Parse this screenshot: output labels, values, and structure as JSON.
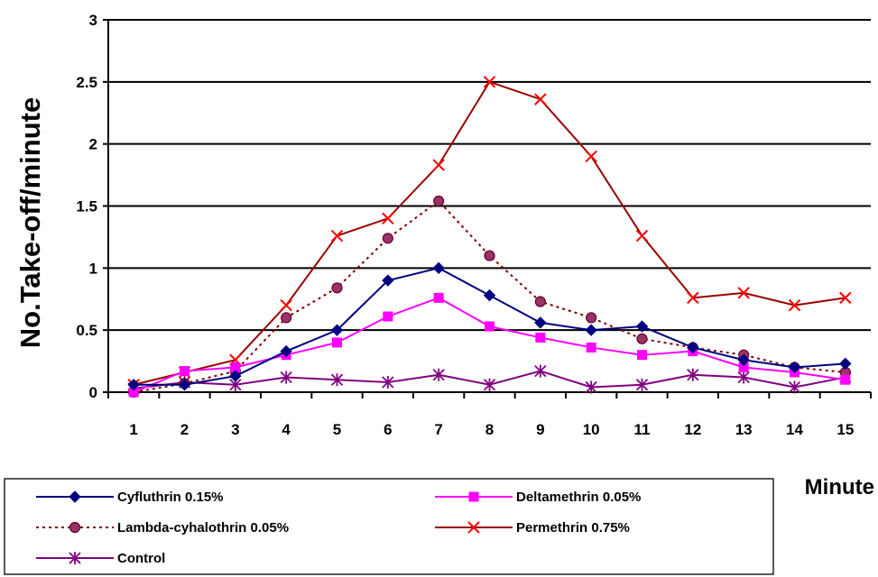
{
  "chart_data": {
    "type": "line",
    "xlabel": "Minute",
    "ylabel": "No.Take-off/minute",
    "ylim": [
      0,
      3
    ],
    "yticks": [
      "0",
      "0.5",
      "1",
      "1.5",
      "2",
      "2.5",
      "3"
    ],
    "categories": [
      "1",
      "2",
      "3",
      "4",
      "5",
      "6",
      "7",
      "8",
      "9",
      "10",
      "11",
      "12",
      "13",
      "14",
      "15"
    ],
    "grid": "horizontal",
    "legend_position": "bottom",
    "series": [
      {
        "name": "Cyfluthrin 0.15%",
        "color": "#000080",
        "marker": "diamond",
        "dash": "solid",
        "values": [
          0.06,
          0.06,
          0.13,
          0.33,
          0.5,
          0.9,
          1.0,
          0.78,
          0.56,
          0.5,
          0.53,
          0.36,
          0.26,
          0.2,
          0.23
        ]
      },
      {
        "name": "Deltamethrin 0.05%",
        "color": "#ff00ff",
        "marker": "square",
        "dash": "solid",
        "values": [
          0.0,
          0.17,
          0.2,
          0.3,
          0.4,
          0.61,
          0.76,
          0.53,
          0.44,
          0.36,
          0.3,
          0.33,
          0.2,
          0.16,
          0.1
        ]
      },
      {
        "name": "Lambda-cyhalothrin 0.05%",
        "color": "#800000",
        "marker": "circle",
        "dash": "dotted",
        "values": [
          0.0,
          0.07,
          0.17,
          0.6,
          0.84,
          1.24,
          1.54,
          1.1,
          0.73,
          0.6,
          0.43,
          0.36,
          0.3,
          0.2,
          0.16
        ]
      },
      {
        "name": "Permethrin 0.75%",
        "color": "#990000",
        "marker": "x",
        "dash": "solid",
        "values": [
          0.06,
          0.16,
          0.26,
          0.7,
          1.26,
          1.4,
          1.83,
          2.5,
          2.36,
          1.9,
          1.26,
          0.76,
          0.8,
          0.7,
          0.76
        ]
      },
      {
        "name": "Control",
        "color": "#800080",
        "marker": "asterisk",
        "dash": "solid",
        "values": [
          0.03,
          0.08,
          0.06,
          0.12,
          0.1,
          0.08,
          0.14,
          0.06,
          0.17,
          0.04,
          0.06,
          0.14,
          0.12,
          0.04,
          0.12
        ]
      }
    ]
  }
}
